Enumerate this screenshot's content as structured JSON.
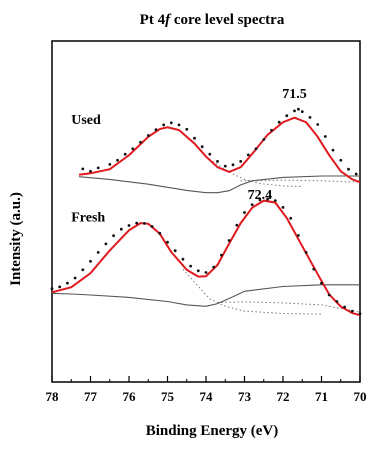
{
  "chart_data": {
    "type": "line",
    "title": "Pt 4",
    "title_italic": "f",
    "title_suffix": " core level spectra",
    "xlabel": "Binding Energy (eV)",
    "ylabel": "Intensity (a.u.)",
    "xlim": [
      78,
      70
    ],
    "x_reversed": true,
    "ylim": [
      0,
      1
    ],
    "x_ticks": [
      78,
      77,
      76,
      75,
      74,
      73,
      72,
      71,
      70
    ],
    "x_tick_labels": [
      "78",
      "77",
      "76",
      "75",
      "74",
      "73",
      "72",
      "71",
      "70"
    ],
    "grid": false,
    "legend": "none",
    "colors": {
      "fit": "#e0191f",
      "background": "#555555",
      "components": "#777777",
      "data": "#111111"
    },
    "panels": [
      {
        "name": "Used",
        "label": "Used",
        "peak_annotation": "71.5",
        "peak_annotation_at": [
          71.7,
          0.833
        ],
        "label_at": [
          77.5,
          0.757
        ],
        "fit": [
          [
            77.3,
            0.608
          ],
          [
            77.0,
            0.612
          ],
          [
            76.5,
            0.624
          ],
          [
            76.0,
            0.665
          ],
          [
            75.5,
            0.719
          ],
          [
            75.2,
            0.742
          ],
          [
            75.0,
            0.747
          ],
          [
            74.7,
            0.739
          ],
          [
            74.3,
            0.699
          ],
          [
            74.0,
            0.661
          ],
          [
            73.7,
            0.63
          ],
          [
            73.4,
            0.616
          ],
          [
            73.1,
            0.63
          ],
          [
            72.8,
            0.669
          ],
          [
            72.4,
            0.725
          ],
          [
            72.0,
            0.762
          ],
          [
            71.7,
            0.775
          ],
          [
            71.4,
            0.762
          ],
          [
            71.1,
            0.719
          ],
          [
            70.8,
            0.665
          ],
          [
            70.5,
            0.618
          ],
          [
            70.2,
            0.594
          ],
          [
            70.0,
            0.586
          ]
        ],
        "background": [
          [
            77.3,
            0.602
          ],
          [
            76.5,
            0.594
          ],
          [
            75.5,
            0.58
          ],
          [
            74.5,
            0.562
          ],
          [
            74.0,
            0.555
          ],
          [
            73.7,
            0.555
          ],
          [
            73.4,
            0.561
          ],
          [
            73.1,
            0.578
          ],
          [
            72.8,
            0.59
          ],
          [
            72.0,
            0.6
          ],
          [
            71.0,
            0.604
          ],
          [
            70.0,
            0.604
          ]
        ],
        "components": [
          [
            [
              74.0,
              0.661
            ],
            [
              73.6,
              0.63
            ],
            [
              73.3,
              0.61
            ],
            [
              73.0,
              0.594
            ],
            [
              72.6,
              0.582
            ],
            [
              72.0,
              0.575
            ],
            [
              71.5,
              0.573
            ]
          ],
          [
            [
              73.1,
              0.59
            ],
            [
              72.5,
              0.59
            ],
            [
              72.0,
              0.592
            ],
            [
              71.0,
              0.59
            ],
            [
              70.0,
              0.586
            ]
          ]
        ],
        "points": [
          [
            77.2,
            0.625
          ],
          [
            77.0,
            0.618
          ],
          [
            76.8,
            0.628
          ],
          [
            76.5,
            0.638
          ],
          [
            76.3,
            0.65
          ],
          [
            76.1,
            0.668
          ],
          [
            75.9,
            0.684
          ],
          [
            75.7,
            0.703
          ],
          [
            75.5,
            0.723
          ],
          [
            75.3,
            0.74
          ],
          [
            75.1,
            0.754
          ],
          [
            74.9,
            0.76
          ],
          [
            74.7,
            0.754
          ],
          [
            74.5,
            0.741
          ],
          [
            74.3,
            0.715
          ],
          [
            74.1,
            0.69
          ],
          [
            73.9,
            0.668
          ],
          [
            73.7,
            0.647
          ],
          [
            73.5,
            0.633
          ],
          [
            73.3,
            0.637
          ],
          [
            73.1,
            0.647
          ],
          [
            72.9,
            0.666
          ],
          [
            72.7,
            0.684
          ],
          [
            72.5,
            0.711
          ],
          [
            72.3,
            0.738
          ],
          [
            72.1,
            0.762
          ],
          [
            71.9,
            0.781
          ],
          [
            71.7,
            0.795
          ],
          [
            71.6,
            0.8
          ],
          [
            71.5,
            0.793
          ],
          [
            71.3,
            0.776
          ],
          [
            71.1,
            0.755
          ],
          [
            70.9,
            0.72
          ],
          [
            70.7,
            0.68
          ],
          [
            70.5,
            0.65
          ],
          [
            70.3,
            0.624
          ],
          [
            70.1,
            0.61
          ]
        ]
      },
      {
        "name": "Fresh",
        "label": "Fresh",
        "peak_annotation": "72.4",
        "peak_annotation_at": [
          72.6,
          0.536
        ],
        "label_at": [
          77.5,
          0.47
        ],
        "fit": [
          [
            78.0,
            0.263
          ],
          [
            77.5,
            0.278
          ],
          [
            77.0,
            0.319
          ],
          [
            76.5,
            0.386
          ],
          [
            76.0,
            0.445
          ],
          [
            75.7,
            0.466
          ],
          [
            75.5,
            0.464
          ],
          [
            75.2,
            0.435
          ],
          [
            74.9,
            0.381
          ],
          [
            74.5,
            0.329
          ],
          [
            74.2,
            0.309
          ],
          [
            74.0,
            0.31
          ],
          [
            73.7,
            0.343
          ],
          [
            73.4,
            0.406
          ],
          [
            73.1,
            0.466
          ],
          [
            72.8,
            0.511
          ],
          [
            72.5,
            0.532
          ],
          [
            72.2,
            0.526
          ],
          [
            71.9,
            0.481
          ],
          [
            71.5,
            0.398
          ],
          [
            71.1,
            0.316
          ],
          [
            70.8,
            0.257
          ],
          [
            70.5,
            0.221
          ],
          [
            70.2,
            0.202
          ],
          [
            70.0,
            0.196
          ]
        ],
        "background": [
          [
            78.0,
            0.26
          ],
          [
            77.5,
            0.258
          ],
          [
            77.0,
            0.255
          ],
          [
            76.0,
            0.248
          ],
          [
            75.0,
            0.236
          ],
          [
            74.5,
            0.226
          ],
          [
            74.0,
            0.222
          ],
          [
            73.7,
            0.23
          ],
          [
            73.3,
            0.25
          ],
          [
            73.0,
            0.266
          ],
          [
            72.0,
            0.28
          ],
          [
            71.0,
            0.285
          ],
          [
            70.0,
            0.285
          ]
        ],
        "components": [
          [
            [
              74.6,
              0.331
            ],
            [
              74.2,
              0.28
            ],
            [
              73.9,
              0.244
            ],
            [
              73.5,
              0.222
            ],
            [
              73.0,
              0.208
            ],
            [
              72.0,
              0.201
            ],
            [
              71.0,
              0.199
            ]
          ],
          [
            [
              73.7,
              0.233
            ],
            [
              73.0,
              0.235
            ],
            [
              72.0,
              0.232
            ],
            [
              71.0,
              0.226
            ],
            [
              70.0,
              0.205
            ]
          ]
        ],
        "points": [
          [
            78.0,
            0.274
          ],
          [
            77.8,
            0.279
          ],
          [
            77.6,
            0.29
          ],
          [
            77.4,
            0.305
          ],
          [
            77.2,
            0.329
          ],
          [
            77.0,
            0.354
          ],
          [
            76.8,
            0.38
          ],
          [
            76.6,
            0.405
          ],
          [
            76.4,
            0.429
          ],
          [
            76.2,
            0.448
          ],
          [
            76.0,
            0.459
          ],
          [
            75.8,
            0.466
          ],
          [
            75.6,
            0.465
          ],
          [
            75.4,
            0.456
          ],
          [
            75.2,
            0.436
          ],
          [
            75.0,
            0.41
          ],
          [
            74.8,
            0.385
          ],
          [
            74.6,
            0.36
          ],
          [
            74.4,
            0.34
          ],
          [
            74.2,
            0.326
          ],
          [
            74.0,
            0.321
          ],
          [
            73.8,
            0.337
          ],
          [
            73.6,
            0.372
          ],
          [
            73.4,
            0.415
          ],
          [
            73.2,
            0.46
          ],
          [
            73.0,
            0.497
          ],
          [
            72.8,
            0.52
          ],
          [
            72.6,
            0.534
          ],
          [
            72.4,
            0.536
          ],
          [
            72.2,
            0.532
          ],
          [
            72.0,
            0.512
          ],
          [
            71.8,
            0.48
          ],
          [
            71.6,
            0.43
          ],
          [
            71.4,
            0.38
          ],
          [
            71.2,
            0.331
          ],
          [
            71.0,
            0.29
          ],
          [
            70.8,
            0.255
          ],
          [
            70.6,
            0.236
          ],
          [
            70.4,
            0.22
          ],
          [
            70.2,
            0.208
          ],
          [
            70.0,
            0.2
          ]
        ]
      }
    ]
  }
}
